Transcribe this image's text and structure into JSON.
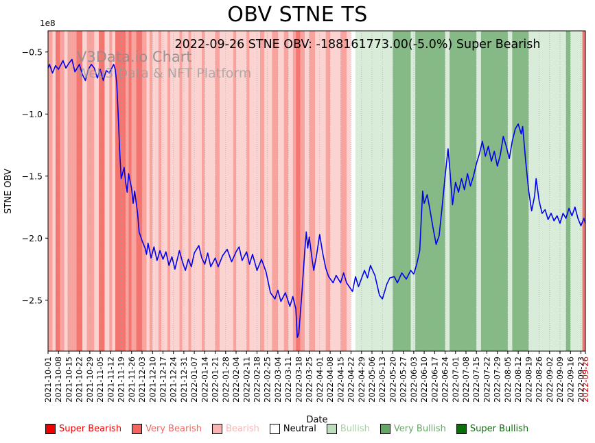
{
  "page": {
    "title": "OBV STNE TS",
    "subtitle": "2022-09-26 STNE OBV: -188161773.00(-5.0%) Super Bearish",
    "watermark_line1": "V3Data.io Chart",
    "watermark_line2": "Web3 Data & NFT Platform"
  },
  "chart_data": {
    "type": "line",
    "title": "OBV STNE TS",
    "subtitle": "2022-09-26 STNE OBV: -188161773.00(-5.0%) Super Bearish",
    "xlabel": "Date",
    "ylabel": "STNE OBV",
    "y_offset_label": "1e8",
    "unit": "1e8",
    "x_start": "2021-10-01",
    "x_end": "2022-09-26",
    "ylim": [
      -2.91,
      -0.33
    ],
    "y_ticks": [
      -0.5,
      -1.0,
      -1.5,
      -2.0,
      -2.5
    ],
    "x_ticks": [
      "2021-10-01",
      "2021-10-08",
      "2021-10-15",
      "2021-10-22",
      "2021-10-29",
      "2021-11-05",
      "2021-11-12",
      "2021-11-19",
      "2021-11-26",
      "2021-12-03",
      "2021-12-10",
      "2021-12-17",
      "2021-12-24",
      "2021-12-31",
      "2022-01-07",
      "2022-01-14",
      "2022-01-21",
      "2022-01-28",
      "2022-02-04",
      "2022-02-11",
      "2022-02-18",
      "2022-02-25",
      "2022-03-04",
      "2022-03-11",
      "2022-03-18",
      "2022-03-25",
      "2022-04-01",
      "2022-04-08",
      "2022-04-15",
      "2022-04-22",
      "2022-04-29",
      "2022-05-06",
      "2022-05-13",
      "2022-05-20",
      "2022-05-27",
      "2022-06-03",
      "2022-06-10",
      "2022-06-17",
      "2022-06-24",
      "2022-07-01",
      "2022-07-08",
      "2022-07-15",
      "2022-07-22",
      "2022-07-29",
      "2022-08-05",
      "2022-08-12",
      "2022-08-19",
      "2022-08-26",
      "2022-09-02",
      "2022-09-09",
      "2022-09-16",
      "2022-09-23",
      "2022-09-26"
    ],
    "highlight_last_tick": true,
    "last_tick_color": "#cc0000",
    "grid": "vertical-dotted",
    "legend_position": "bottom",
    "line_color": "#0000ee",
    "series": [
      {
        "name": "STNE OBV",
        "points_format": "[days_since_2021-10-01, value_in_1e8]",
        "points": [
          [
            0,
            -0.63
          ],
          [
            1,
            -0.6
          ],
          [
            3,
            -0.67
          ],
          [
            5,
            -0.61
          ],
          [
            7,
            -0.64
          ],
          [
            10,
            -0.57
          ],
          [
            12,
            -0.63
          ],
          [
            14,
            -0.59
          ],
          [
            16,
            -0.56
          ],
          [
            18,
            -0.66
          ],
          [
            21,
            -0.6
          ],
          [
            23,
            -0.68
          ],
          [
            25,
            -0.73
          ],
          [
            27,
            -0.64
          ],
          [
            29,
            -0.6
          ],
          [
            31,
            -0.63
          ],
          [
            33,
            -0.71
          ],
          [
            35,
            -0.64
          ],
          [
            37,
            -0.73
          ],
          [
            39,
            -0.65
          ],
          [
            41,
            -0.67
          ],
          [
            44,
            -0.6
          ],
          [
            45,
            -0.64
          ],
          [
            46,
            -0.75
          ],
          [
            47,
            -1.0
          ],
          [
            48,
            -1.3
          ],
          [
            49,
            -1.52
          ],
          [
            51,
            -1.43
          ],
          [
            52,
            -1.55
          ],
          [
            53,
            -1.63
          ],
          [
            54,
            -1.48
          ],
          [
            56,
            -1.6
          ],
          [
            57,
            -1.72
          ],
          [
            58,
            -1.62
          ],
          [
            60,
            -1.8
          ],
          [
            61,
            -1.95
          ],
          [
            63,
            -2.02
          ],
          [
            65,
            -2.08
          ],
          [
            66,
            -2.13
          ],
          [
            67,
            -2.04
          ],
          [
            69,
            -2.16
          ],
          [
            71,
            -2.07
          ],
          [
            73,
            -2.18
          ],
          [
            75,
            -2.1
          ],
          [
            77,
            -2.17
          ],
          [
            79,
            -2.11
          ],
          [
            81,
            -2.22
          ],
          [
            83,
            -2.15
          ],
          [
            85,
            -2.25
          ],
          [
            88,
            -2.1
          ],
          [
            90,
            -2.19
          ],
          [
            92,
            -2.26
          ],
          [
            94,
            -2.17
          ],
          [
            96,
            -2.23
          ],
          [
            98,
            -2.12
          ],
          [
            101,
            -2.06
          ],
          [
            103,
            -2.16
          ],
          [
            105,
            -2.21
          ],
          [
            107,
            -2.12
          ],
          [
            109,
            -2.23
          ],
          [
            112,
            -2.16
          ],
          [
            114,
            -2.23
          ],
          [
            117,
            -2.14
          ],
          [
            120,
            -2.09
          ],
          [
            123,
            -2.19
          ],
          [
            126,
            -2.11
          ],
          [
            128,
            -2.07
          ],
          [
            130,
            -2.18
          ],
          [
            133,
            -2.11
          ],
          [
            135,
            -2.21
          ],
          [
            137,
            -2.13
          ],
          [
            140,
            -2.26
          ],
          [
            143,
            -2.17
          ],
          [
            146,
            -2.27
          ],
          [
            149,
            -2.44
          ],
          [
            152,
            -2.49
          ],
          [
            154,
            -2.42
          ],
          [
            156,
            -2.51
          ],
          [
            159,
            -2.44
          ],
          [
            162,
            -2.55
          ],
          [
            164,
            -2.47
          ],
          [
            166,
            -2.57
          ],
          [
            167,
            -2.8
          ],
          [
            168,
            -2.77
          ],
          [
            170,
            -2.45
          ],
          [
            172,
            -2.1
          ],
          [
            173,
            -1.95
          ],
          [
            174,
            -2.08
          ],
          [
            175,
            -1.99
          ],
          [
            177,
            -2.18
          ],
          [
            178,
            -2.26
          ],
          [
            180,
            -2.13
          ],
          [
            182,
            -1.97
          ],
          [
            184,
            -2.12
          ],
          [
            186,
            -2.24
          ],
          [
            188,
            -2.31
          ],
          [
            191,
            -2.36
          ],
          [
            193,
            -2.3
          ],
          [
            196,
            -2.36
          ],
          [
            198,
            -2.28
          ],
          [
            200,
            -2.36
          ],
          [
            204,
            -2.43
          ],
          [
            206,
            -2.31
          ],
          [
            208,
            -2.39
          ],
          [
            212,
            -2.26
          ],
          [
            214,
            -2.32
          ],
          [
            216,
            -2.22
          ],
          [
            219,
            -2.3
          ],
          [
            222,
            -2.46
          ],
          [
            224,
            -2.49
          ],
          [
            227,
            -2.37
          ],
          [
            229,
            -2.32
          ],
          [
            232,
            -2.31
          ],
          [
            234,
            -2.36
          ],
          [
            237,
            -2.28
          ],
          [
            240,
            -2.33
          ],
          [
            243,
            -2.26
          ],
          [
            245,
            -2.29
          ],
          [
            247,
            -2.21
          ],
          [
            249,
            -2.1
          ],
          [
            250,
            -1.85
          ],
          [
            251,
            -1.62
          ],
          [
            252,
            -1.72
          ],
          [
            254,
            -1.65
          ],
          [
            256,
            -1.78
          ],
          [
            258,
            -1.92
          ],
          [
            260,
            -2.05
          ],
          [
            262,
            -1.98
          ],
          [
            264,
            -1.75
          ],
          [
            266,
            -1.5
          ],
          [
            268,
            -1.28
          ],
          [
            269,
            -1.42
          ],
          [
            270,
            -1.58
          ],
          [
            271,
            -1.73
          ],
          [
            273,
            -1.55
          ],
          [
            275,
            -1.63
          ],
          [
            277,
            -1.52
          ],
          [
            279,
            -1.61
          ],
          [
            281,
            -1.48
          ],
          [
            283,
            -1.58
          ],
          [
            285,
            -1.5
          ],
          [
            287,
            -1.4
          ],
          [
            289,
            -1.32
          ],
          [
            291,
            -1.22
          ],
          [
            293,
            -1.34
          ],
          [
            295,
            -1.26
          ],
          [
            297,
            -1.38
          ],
          [
            299,
            -1.3
          ],
          [
            301,
            -1.42
          ],
          [
            303,
            -1.33
          ],
          [
            305,
            -1.18
          ],
          [
            307,
            -1.26
          ],
          [
            309,
            -1.36
          ],
          [
            311,
            -1.22
          ],
          [
            313,
            -1.12
          ],
          [
            315,
            -1.08
          ],
          [
            317,
            -1.16
          ],
          [
            318,
            -1.1
          ],
          [
            320,
            -1.38
          ],
          [
            322,
            -1.62
          ],
          [
            324,
            -1.78
          ],
          [
            326,
            -1.66
          ],
          [
            327,
            -1.52
          ],
          [
            329,
            -1.7
          ],
          [
            331,
            -1.8
          ],
          [
            333,
            -1.77
          ],
          [
            335,
            -1.85
          ],
          [
            337,
            -1.8
          ],
          [
            339,
            -1.86
          ],
          [
            341,
            -1.82
          ],
          [
            343,
            -1.88
          ],
          [
            345,
            -1.8
          ],
          [
            347,
            -1.84
          ],
          [
            349,
            -1.76
          ],
          [
            351,
            -1.82
          ],
          [
            353,
            -1.75
          ],
          [
            355,
            -1.84
          ],
          [
            357,
            -1.9
          ],
          [
            359,
            -1.84
          ],
          [
            360,
            -1.88
          ]
        ]
      }
    ],
    "sentiment_colors": {
      "super_bearish": "#f4756f",
      "very_bearish": "#f9a39e",
      "bearish": "#fbd4d2",
      "neutral": "#ffffff",
      "bullish": "#d9ecd9",
      "very_bullish": "#85b985",
      "super_bullish": "#2f7d2f"
    },
    "bands": [
      [
        "2021-10-01",
        "2021-10-04",
        "very_bearish"
      ],
      [
        "2021-10-04",
        "2021-10-06",
        "bearish"
      ],
      [
        "2021-10-06",
        "2021-10-09",
        "super_bearish"
      ],
      [
        "2021-10-09",
        "2021-10-12",
        "very_bearish"
      ],
      [
        "2021-10-12",
        "2021-10-14",
        "bearish"
      ],
      [
        "2021-10-14",
        "2021-10-20",
        "very_bearish"
      ],
      [
        "2021-10-20",
        "2021-10-24",
        "super_bearish"
      ],
      [
        "2021-10-24",
        "2021-10-27",
        "bearish"
      ],
      [
        "2021-10-27",
        "2021-11-01",
        "very_bearish"
      ],
      [
        "2021-11-01",
        "2021-11-04",
        "bearish"
      ],
      [
        "2021-11-04",
        "2021-11-08",
        "super_bearish"
      ],
      [
        "2021-11-08",
        "2021-11-11",
        "bearish"
      ],
      [
        "2021-11-11",
        "2021-11-13",
        "very_bearish"
      ],
      [
        "2021-11-13",
        "2021-11-15",
        "bearish"
      ],
      [
        "2021-11-15",
        "2021-11-22",
        "super_bearish"
      ],
      [
        "2021-11-22",
        "2021-11-24",
        "very_bearish"
      ],
      [
        "2021-11-24",
        "2021-11-26",
        "super_bearish"
      ],
      [
        "2021-11-26",
        "2021-11-29",
        "very_bearish"
      ],
      [
        "2021-11-29",
        "2021-12-03",
        "super_bearish"
      ],
      [
        "2021-12-03",
        "2021-12-06",
        "very_bearish"
      ],
      [
        "2021-12-06",
        "2021-12-08",
        "bearish"
      ],
      [
        "2021-12-08",
        "2021-12-10",
        "very_bearish"
      ],
      [
        "2021-12-10",
        "2021-12-14",
        "bearish"
      ],
      [
        "2021-12-14",
        "2021-12-16",
        "very_bearish"
      ],
      [
        "2021-12-16",
        "2021-12-20",
        "bearish"
      ],
      [
        "2021-12-20",
        "2021-12-22",
        "very_bearish"
      ],
      [
        "2021-12-22",
        "2021-12-28",
        "bearish"
      ],
      [
        "2021-12-28",
        "2021-12-30",
        "very_bearish"
      ],
      [
        "2021-12-30",
        "2022-01-03",
        "bearish"
      ],
      [
        "2022-01-03",
        "2022-01-05",
        "very_bearish"
      ],
      [
        "2022-01-05",
        "2022-01-12",
        "bearish"
      ],
      [
        "2022-01-12",
        "2022-01-14",
        "very_bearish"
      ],
      [
        "2022-01-14",
        "2022-01-21",
        "bearish"
      ],
      [
        "2022-01-21",
        "2022-01-24",
        "very_bearish"
      ],
      [
        "2022-01-24",
        "2022-02-02",
        "bearish"
      ],
      [
        "2022-02-02",
        "2022-02-04",
        "very_bearish"
      ],
      [
        "2022-02-04",
        "2022-02-11",
        "bearish"
      ],
      [
        "2022-02-11",
        "2022-02-13",
        "very_bearish"
      ],
      [
        "2022-02-13",
        "2022-02-20",
        "bearish"
      ],
      [
        "2022-02-20",
        "2022-02-23",
        "very_bearish"
      ],
      [
        "2022-02-23",
        "2022-02-28",
        "bearish"
      ],
      [
        "2022-02-28",
        "2022-03-04",
        "very_bearish"
      ],
      [
        "2022-03-04",
        "2022-03-08",
        "bearish"
      ],
      [
        "2022-03-08",
        "2022-03-11",
        "very_bearish"
      ],
      [
        "2022-03-11",
        "2022-03-14",
        "bearish"
      ],
      [
        "2022-03-14",
        "2022-03-16",
        "very_bearish"
      ],
      [
        "2022-03-16",
        "2022-03-19",
        "super_bearish"
      ],
      [
        "2022-03-19",
        "2022-03-22",
        "very_bearish"
      ],
      [
        "2022-03-22",
        "2022-03-25",
        "bearish"
      ],
      [
        "2022-03-25",
        "2022-03-29",
        "very_bearish"
      ],
      [
        "2022-03-29",
        "2022-04-05",
        "bearish"
      ],
      [
        "2022-04-05",
        "2022-04-08",
        "very_bearish"
      ],
      [
        "2022-04-08",
        "2022-04-15",
        "bearish"
      ],
      [
        "2022-04-15",
        "2022-04-19",
        "very_bearish"
      ],
      [
        "2022-04-19",
        "2022-04-22",
        "bearish"
      ],
      [
        "2022-04-22",
        "2022-04-25",
        "neutral"
      ],
      [
        "2022-04-25",
        "2022-05-20",
        "bullish"
      ],
      [
        "2022-05-20",
        "2022-06-01",
        "very_bullish"
      ],
      [
        "2022-06-01",
        "2022-06-04",
        "bullish"
      ],
      [
        "2022-06-04",
        "2022-06-24",
        "very_bullish"
      ],
      [
        "2022-06-24",
        "2022-06-27",
        "bullish"
      ],
      [
        "2022-06-27",
        "2022-07-15",
        "very_bullish"
      ],
      [
        "2022-07-15",
        "2022-07-18",
        "bullish"
      ],
      [
        "2022-07-18",
        "2022-08-05",
        "very_bullish"
      ],
      [
        "2022-08-05",
        "2022-08-08",
        "bullish"
      ],
      [
        "2022-08-08",
        "2022-08-19",
        "very_bullish"
      ],
      [
        "2022-08-19",
        "2022-09-13",
        "bullish"
      ],
      [
        "2022-09-13",
        "2022-09-16",
        "very_bullish"
      ],
      [
        "2022-09-16",
        "2022-09-24",
        "bullish"
      ],
      [
        "2022-09-24",
        "2022-09-26",
        "super_bearish"
      ]
    ],
    "legend": [
      {
        "label": "Super Bearish",
        "color": "#ee0000",
        "label_color": "#ee0000"
      },
      {
        "label": "Very Bearish",
        "color": "#f4655f",
        "label_color": "#f4655f"
      },
      {
        "label": "Bearish",
        "color": "#f8b4b0",
        "label_color": "#f8b4b0"
      },
      {
        "label": "Neutral",
        "color": "#ffffff",
        "label_color": "#000000"
      },
      {
        "label": "Bullish",
        "color": "#bcdebc",
        "label_color": "#a9cfa9"
      },
      {
        "label": "Very Bullish",
        "color": "#64a864",
        "label_color": "#64a864"
      },
      {
        "label": "Super Bullish",
        "color": "#0b6e0b",
        "label_color": "#0b6e0b"
      }
    ]
  }
}
